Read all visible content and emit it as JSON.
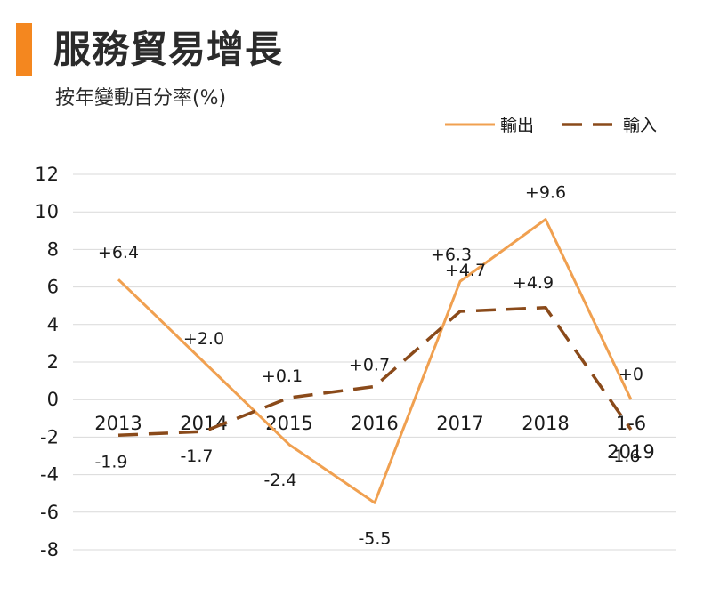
{
  "chart_data": {
    "type": "line",
    "title": "服務貿易增長",
    "subtitle": "按年變動百分率(%)",
    "categories": [
      "2013",
      "2014",
      "2015",
      "2016",
      "2017",
      "2018",
      "1-6\n2019"
    ],
    "category_lines": [
      [
        "2013"
      ],
      [
        "2014"
      ],
      [
        "2015"
      ],
      [
        "2016"
      ],
      [
        "2017"
      ],
      [
        "2018"
      ],
      [
        "1-6",
        "2019"
      ]
    ],
    "ylim": [
      -8,
      12
    ],
    "yticks": [
      12,
      10,
      8,
      6,
      4,
      2,
      0,
      -2,
      -4,
      -6,
      -8
    ],
    "grid": true,
    "legend_position": "top-right",
    "series": [
      {
        "name": "輸出",
        "color": "#f0a050",
        "dash": "solid",
        "values": [
          6.4,
          2.0,
          -2.4,
          -5.5,
          6.3,
          9.6,
          0
        ],
        "labels": [
          "+6.4",
          "+2.0",
          "-2.4",
          "-5.5",
          "+6.3",
          "+9.6",
          "+0"
        ]
      },
      {
        "name": "輸入",
        "color": "#8a4a1a",
        "dash": "dashed",
        "values": [
          -1.9,
          -1.7,
          0.1,
          0.7,
          4.7,
          4.9,
          -1.6
        ],
        "labels": [
          "-1.9",
          "-1.7",
          "+0.1",
          "+0.7",
          "+4.7",
          "+4.9",
          "-1.6"
        ]
      }
    ]
  }
}
